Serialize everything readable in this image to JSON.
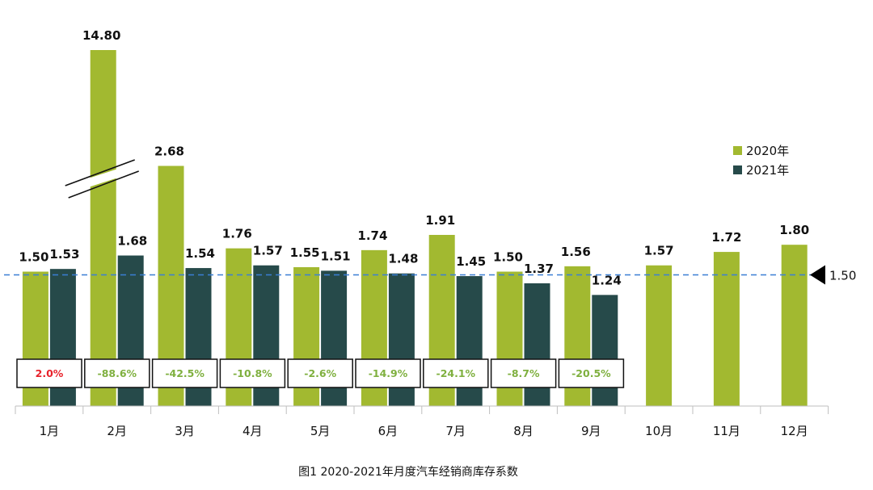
{
  "chart_data": {
    "type": "bar",
    "title": "图1 2020-2021年月度汽车经销商库存系数",
    "categories": [
      "1月",
      "2月",
      "3月",
      "4月",
      "5月",
      "6月",
      "7月",
      "8月",
      "9月",
      "10月",
      "11月",
      "12月"
    ],
    "series": [
      {
        "name": "2020年",
        "color": "#a2b930",
        "values": [
          1.5,
          14.8,
          2.68,
          1.76,
          1.55,
          1.74,
          1.91,
          1.5,
          1.56,
          1.57,
          1.72,
          1.8
        ],
        "labels": [
          "1.50",
          "14.80",
          "2.68",
          "1.76",
          "1.55",
          "1.74",
          "1.91",
          "1.50",
          "1.56",
          "1.57",
          "1.72",
          "1.80"
        ]
      },
      {
        "name": "2021年",
        "color": "#264a4a",
        "values": [
          1.53,
          1.68,
          1.54,
          1.57,
          1.51,
          1.48,
          1.45,
          1.37,
          1.24,
          null,
          null,
          null
        ],
        "labels": [
          "1.53",
          "1.68",
          "1.54",
          "1.57",
          "1.51",
          "1.48",
          "1.45",
          "1.37",
          "1.24",
          null,
          null,
          null
        ]
      }
    ],
    "yoy_change": [
      "2.0%",
      "-88.6%",
      "-42.5%",
      "-10.8%",
      "-2.6%",
      "-14.9%",
      "-24.1%",
      "-8.7%",
      "-20.5%"
    ],
    "yoy_colors": [
      "#e8212a",
      "#7fb03f",
      "#7fb03f",
      "#7fb03f",
      "#7fb03f",
      "#7fb03f",
      "#7fb03f",
      "#7fb03f",
      "#7fb03f"
    ],
    "reference_line": {
      "value": 1.5,
      "label": "1.50",
      "color": "#3a7fd5"
    },
    "axis_break": {
      "category": "2月",
      "series": "2020年"
    },
    "legend_position": "right",
    "ylim": [
      0,
      3.0
    ],
    "xlabel": "",
    "ylabel": ""
  }
}
